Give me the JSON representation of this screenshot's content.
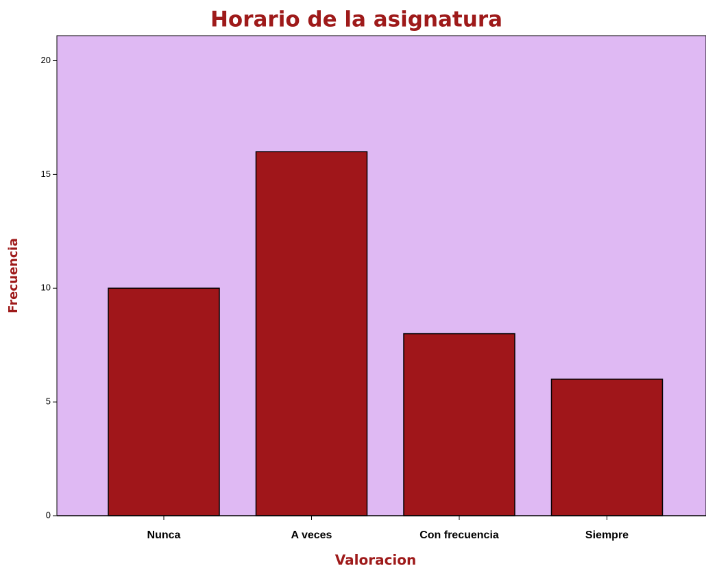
{
  "chart_data": {
    "type": "bar",
    "title": "Horario de la asignatura",
    "x_label": "Valoracion",
    "y_label": "Frecuencia",
    "categories": [
      "Nunca",
      "A veces",
      "Con frecuencia",
      "Siempre"
    ],
    "values": [
      10,
      16,
      8,
      6
    ],
    "color": "#a0161a",
    "background": "#dfb9f3",
    "ylim": [
      0,
      21.1
    ],
    "yticks": [
      0,
      5,
      10,
      15,
      20
    ],
    "grid": false
  }
}
